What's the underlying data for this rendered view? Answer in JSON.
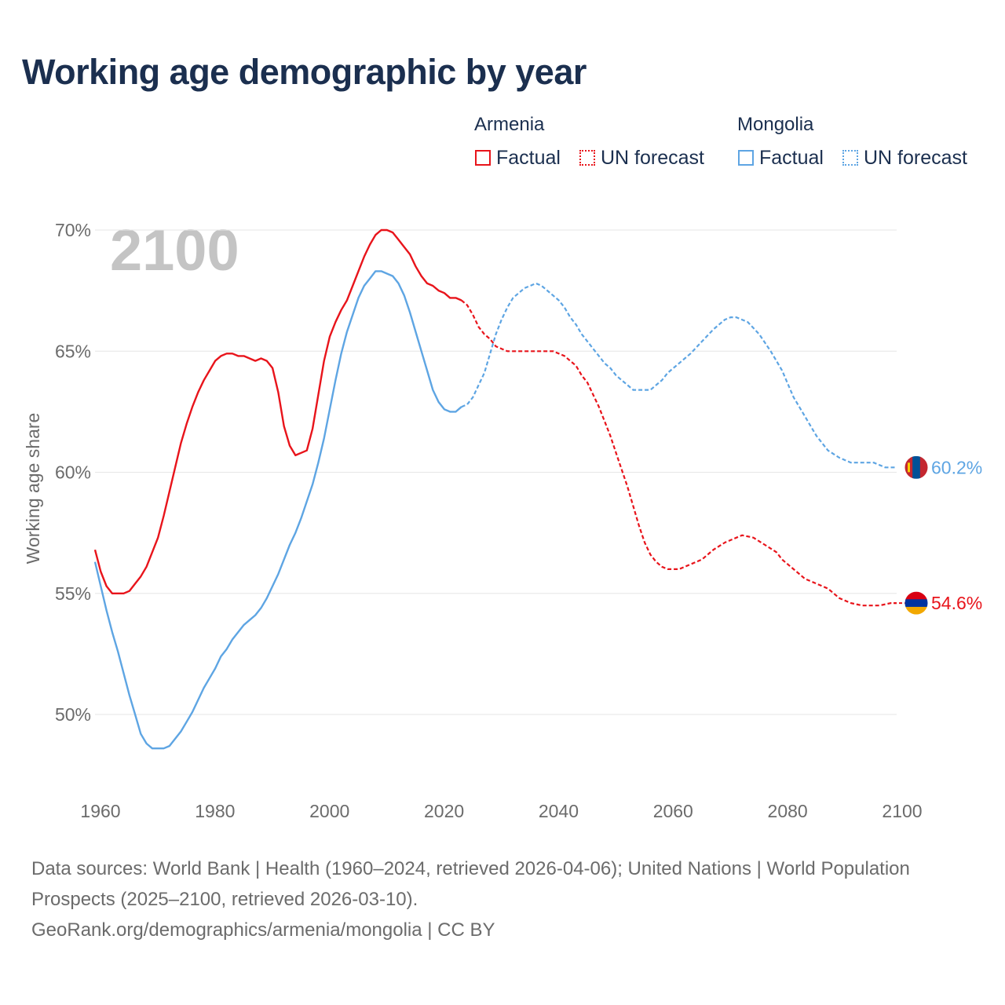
{
  "title": "Working age demographic by year",
  "legend": {
    "groups": [
      {
        "name": "Armenia",
        "color": "#e8141b",
        "factual_label": "Factual",
        "forecast_label": "UN forecast"
      },
      {
        "name": "Mongolia",
        "color": "#5ea5e3",
        "factual_label": "Factual",
        "forecast_label": "UN forecast"
      }
    ]
  },
  "chart_data": {
    "type": "line",
    "title": "Working age demographic by year",
    "ylabel": "Working age share",
    "xlabel": "",
    "xlim": [
      1960,
      2100
    ],
    "ylim": [
      47,
      72
    ],
    "x_ticks": [
      1960,
      1980,
      2000,
      2020,
      2040,
      2060,
      2080,
      2100
    ],
    "x_tick_labels": [
      "1960",
      "1980",
      "2000",
      "2020",
      "2040",
      "2060",
      "2080",
      "2100"
    ],
    "y_ticks": [
      50,
      55,
      60,
      65,
      70
    ],
    "y_tick_labels": [
      "50%",
      "55%",
      "60%",
      "65%",
      "70%"
    ],
    "year_watermark": "2100",
    "factual_range": [
      1960,
      2024
    ],
    "forecast_range": [
      2025,
      2100
    ],
    "series": [
      {
        "name": "Armenia",
        "color": "#e8141b",
        "end_label": "54.6%",
        "points": [
          [
            1960,
            56.8
          ],
          [
            1961,
            55.9
          ],
          [
            1962,
            55.3
          ],
          [
            1963,
            55.0
          ],
          [
            1965,
            55.0
          ],
          [
            1966,
            55.1
          ],
          [
            1967,
            55.4
          ],
          [
            1968,
            55.7
          ],
          [
            1969,
            56.1
          ],
          [
            1970,
            56.7
          ],
          [
            1971,
            57.3
          ],
          [
            1972,
            58.2
          ],
          [
            1973,
            59.2
          ],
          [
            1974,
            60.2
          ],
          [
            1975,
            61.2
          ],
          [
            1976,
            62.0
          ],
          [
            1977,
            62.7
          ],
          [
            1978,
            63.3
          ],
          [
            1979,
            63.8
          ],
          [
            1980,
            64.2
          ],
          [
            1981,
            64.6
          ],
          [
            1982,
            64.8
          ],
          [
            1983,
            64.9
          ],
          [
            1984,
            64.9
          ],
          [
            1985,
            64.8
          ],
          [
            1986,
            64.8
          ],
          [
            1987,
            64.7
          ],
          [
            1988,
            64.6
          ],
          [
            1989,
            64.7
          ],
          [
            1990,
            64.6
          ],
          [
            1991,
            64.3
          ],
          [
            1992,
            63.3
          ],
          [
            1993,
            61.9
          ],
          [
            1994,
            61.1
          ],
          [
            1995,
            60.7
          ],
          [
            1996,
            60.8
          ],
          [
            1997,
            60.9
          ],
          [
            1998,
            61.8
          ],
          [
            1999,
            63.2
          ],
          [
            2000,
            64.6
          ],
          [
            2001,
            65.6
          ],
          [
            2002,
            66.2
          ],
          [
            2003,
            66.7
          ],
          [
            2004,
            67.1
          ],
          [
            2005,
            67.7
          ],
          [
            2006,
            68.3
          ],
          [
            2007,
            68.9
          ],
          [
            2008,
            69.4
          ],
          [
            2009,
            69.8
          ],
          [
            2010,
            70.0
          ],
          [
            2011,
            70.0
          ],
          [
            2012,
            69.9
          ],
          [
            2013,
            69.6
          ],
          [
            2014,
            69.3
          ],
          [
            2015,
            69.0
          ],
          [
            2016,
            68.5
          ],
          [
            2017,
            68.1
          ],
          [
            2018,
            67.8
          ],
          [
            2019,
            67.7
          ],
          [
            2020,
            67.5
          ],
          [
            2021,
            67.4
          ],
          [
            2022,
            67.2
          ],
          [
            2023,
            67.2
          ],
          [
            2024,
            67.1
          ],
          [
            2025,
            66.9
          ],
          [
            2026,
            66.5
          ],
          [
            2027,
            66.0
          ],
          [
            2028,
            65.7
          ],
          [
            2029,
            65.5
          ],
          [
            2030,
            65.2
          ],
          [
            2031,
            65.1
          ],
          [
            2032,
            65.0
          ],
          [
            2035,
            65.0
          ],
          [
            2038,
            65.0
          ],
          [
            2040,
            65.0
          ],
          [
            2041,
            64.9
          ],
          [
            2042,
            64.8
          ],
          [
            2043,
            64.6
          ],
          [
            2044,
            64.4
          ],
          [
            2045,
            64.0
          ],
          [
            2046,
            63.7
          ],
          [
            2047,
            63.2
          ],
          [
            2048,
            62.7
          ],
          [
            2049,
            62.1
          ],
          [
            2050,
            61.5
          ],
          [
            2051,
            60.8
          ],
          [
            2052,
            60.1
          ],
          [
            2053,
            59.4
          ],
          [
            2054,
            58.6
          ],
          [
            2055,
            57.8
          ],
          [
            2056,
            57.1
          ],
          [
            2057,
            56.6
          ],
          [
            2058,
            56.3
          ],
          [
            2059,
            56.1
          ],
          [
            2060,
            56.0
          ],
          [
            2062,
            56.0
          ],
          [
            2064,
            56.2
          ],
          [
            2066,
            56.4
          ],
          [
            2068,
            56.8
          ],
          [
            2070,
            57.1
          ],
          [
            2072,
            57.3
          ],
          [
            2073,
            57.4
          ],
          [
            2075,
            57.3
          ],
          [
            2077,
            57.0
          ],
          [
            2079,
            56.7
          ],
          [
            2080,
            56.4
          ],
          [
            2082,
            56.0
          ],
          [
            2084,
            55.6
          ],
          [
            2086,
            55.4
          ],
          [
            2088,
            55.2
          ],
          [
            2090,
            54.8
          ],
          [
            2092,
            54.6
          ],
          [
            2094,
            54.5
          ],
          [
            2097,
            54.5
          ],
          [
            2099,
            54.6
          ],
          [
            2100,
            54.6
          ]
        ]
      },
      {
        "name": "Mongolia",
        "color": "#5ea5e3",
        "end_label": "60.2%",
        "points": [
          [
            1960,
            56.3
          ],
          [
            1961,
            55.3
          ],
          [
            1962,
            54.3
          ],
          [
            1963,
            53.4
          ],
          [
            1964,
            52.6
          ],
          [
            1965,
            51.7
          ],
          [
            1966,
            50.8
          ],
          [
            1967,
            50.0
          ],
          [
            1968,
            49.2
          ],
          [
            1969,
            48.8
          ],
          [
            1970,
            48.6
          ],
          [
            1972,
            48.6
          ],
          [
            1973,
            48.7
          ],
          [
            1974,
            49.0
          ],
          [
            1975,
            49.3
          ],
          [
            1976,
            49.7
          ],
          [
            1977,
            50.1
          ],
          [
            1978,
            50.6
          ],
          [
            1979,
            51.1
          ],
          [
            1980,
            51.5
          ],
          [
            1981,
            51.9
          ],
          [
            1982,
            52.4
          ],
          [
            1983,
            52.7
          ],
          [
            1984,
            53.1
          ],
          [
            1985,
            53.4
          ],
          [
            1986,
            53.7
          ],
          [
            1987,
            53.9
          ],
          [
            1988,
            54.1
          ],
          [
            1989,
            54.4
          ],
          [
            1990,
            54.8
          ],
          [
            1991,
            55.3
          ],
          [
            1992,
            55.8
          ],
          [
            1993,
            56.4
          ],
          [
            1994,
            57.0
          ],
          [
            1995,
            57.5
          ],
          [
            1996,
            58.1
          ],
          [
            1997,
            58.8
          ],
          [
            1998,
            59.5
          ],
          [
            1999,
            60.4
          ],
          [
            2000,
            61.4
          ],
          [
            2001,
            62.6
          ],
          [
            2002,
            63.8
          ],
          [
            2003,
            64.9
          ],
          [
            2004,
            65.8
          ],
          [
            2005,
            66.5
          ],
          [
            2006,
            67.2
          ],
          [
            2007,
            67.7
          ],
          [
            2008,
            68.0
          ],
          [
            2009,
            68.3
          ],
          [
            2010,
            68.3
          ],
          [
            2011,
            68.2
          ],
          [
            2012,
            68.1
          ],
          [
            2013,
            67.8
          ],
          [
            2014,
            67.3
          ],
          [
            2015,
            66.6
          ],
          [
            2016,
            65.8
          ],
          [
            2017,
            65.0
          ],
          [
            2018,
            64.2
          ],
          [
            2019,
            63.4
          ],
          [
            2020,
            62.9
          ],
          [
            2021,
            62.6
          ],
          [
            2022,
            62.5
          ],
          [
            2023,
            62.5
          ],
          [
            2024,
            62.7
          ],
          [
            2025,
            62.8
          ],
          [
            2026,
            63.1
          ],
          [
            2027,
            63.6
          ],
          [
            2028,
            64.1
          ],
          [
            2029,
            64.9
          ],
          [
            2030,
            65.7
          ],
          [
            2031,
            66.3
          ],
          [
            2032,
            66.8
          ],
          [
            2033,
            67.2
          ],
          [
            2034,
            67.4
          ],
          [
            2035,
            67.6
          ],
          [
            2036,
            67.7
          ],
          [
            2037,
            67.8
          ],
          [
            2038,
            67.7
          ],
          [
            2039,
            67.5
          ],
          [
            2040,
            67.3
          ],
          [
            2041,
            67.1
          ],
          [
            2042,
            66.8
          ],
          [
            2043,
            66.4
          ],
          [
            2044,
            66.1
          ],
          [
            2045,
            65.7
          ],
          [
            2046,
            65.4
          ],
          [
            2047,
            65.1
          ],
          [
            2048,
            64.8
          ],
          [
            2049,
            64.5
          ],
          [
            2050,
            64.3
          ],
          [
            2051,
            64.0
          ],
          [
            2052,
            63.8
          ],
          [
            2053,
            63.6
          ],
          [
            2054,
            63.4
          ],
          [
            2057,
            63.4
          ],
          [
            2058,
            63.6
          ],
          [
            2059,
            63.8
          ],
          [
            2060,
            64.1
          ],
          [
            2062,
            64.5
          ],
          [
            2064,
            64.9
          ],
          [
            2066,
            65.4
          ],
          [
            2068,
            65.9
          ],
          [
            2070,
            66.3
          ],
          [
            2071,
            66.4
          ],
          [
            2072,
            66.4
          ],
          [
            2074,
            66.2
          ],
          [
            2076,
            65.7
          ],
          [
            2078,
            65.0
          ],
          [
            2080,
            64.2
          ],
          [
            2082,
            63.1
          ],
          [
            2084,
            62.3
          ],
          [
            2086,
            61.5
          ],
          [
            2088,
            60.9
          ],
          [
            2090,
            60.6
          ],
          [
            2092,
            60.4
          ],
          [
            2096,
            60.4
          ],
          [
            2098,
            60.2
          ],
          [
            2100,
            60.2
          ]
        ]
      }
    ]
  },
  "footer": {
    "sources": "Data sources: World Bank | Health (1960–2024, retrieved 2026-04-06); United Nations | World Population Prospects (2025–2100, retrieved 2026-03-10).",
    "credit": "GeoRank.org/demographics/armenia/mongolia | CC BY"
  },
  "colors": {
    "title": "#1b2f4f",
    "axis_text": "#6b6b6b",
    "grid": "#e6e6e6",
    "watermark": "#c4c4c4",
    "mongolia_flag_red": "#c4272f",
    "mongolia_flag_blue": "#015197",
    "mongolia_flag_gold": "#f9cf02",
    "armenia_flag_red": "#d90012",
    "armenia_flag_blue": "#0033a0",
    "armenia_flag_orange": "#f2a800"
  }
}
